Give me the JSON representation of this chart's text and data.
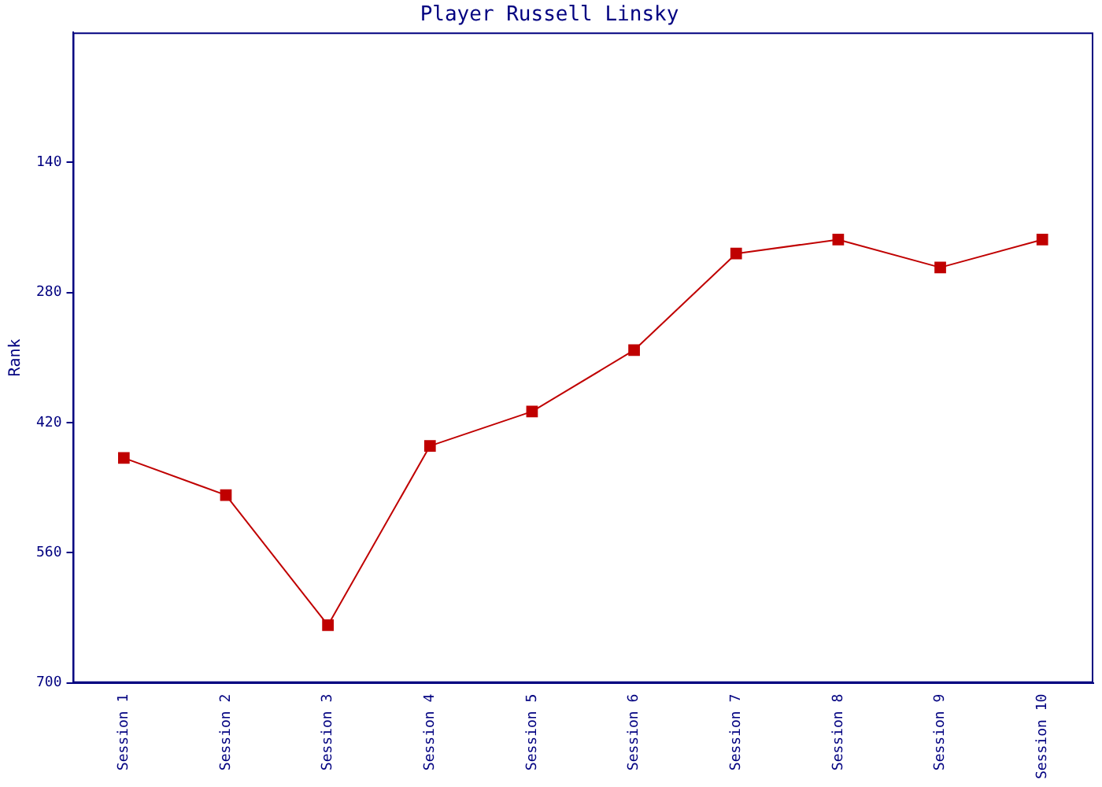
{
  "chart_data": {
    "type": "line",
    "title": "Player Russell Linsky",
    "ylabel": "Rank",
    "categories": [
      "Session 1",
      "Session 2",
      "Session 3",
      "Session 4",
      "Session 5",
      "Session 6",
      "Session 7",
      "Session 8",
      "Session 9",
      "Session 10"
    ],
    "series": [
      {
        "color": "#c00000",
        "values": [
          458,
          498,
          638,
          445,
          408,
          342,
          238,
          223,
          253,
          223
        ]
      }
    ],
    "ylim": [
      700,
      0
    ],
    "yticks": [
      140,
      280,
      420,
      560,
      700
    ],
    "grid": false,
    "legend": false,
    "marker": "square",
    "line_style": "solid"
  }
}
